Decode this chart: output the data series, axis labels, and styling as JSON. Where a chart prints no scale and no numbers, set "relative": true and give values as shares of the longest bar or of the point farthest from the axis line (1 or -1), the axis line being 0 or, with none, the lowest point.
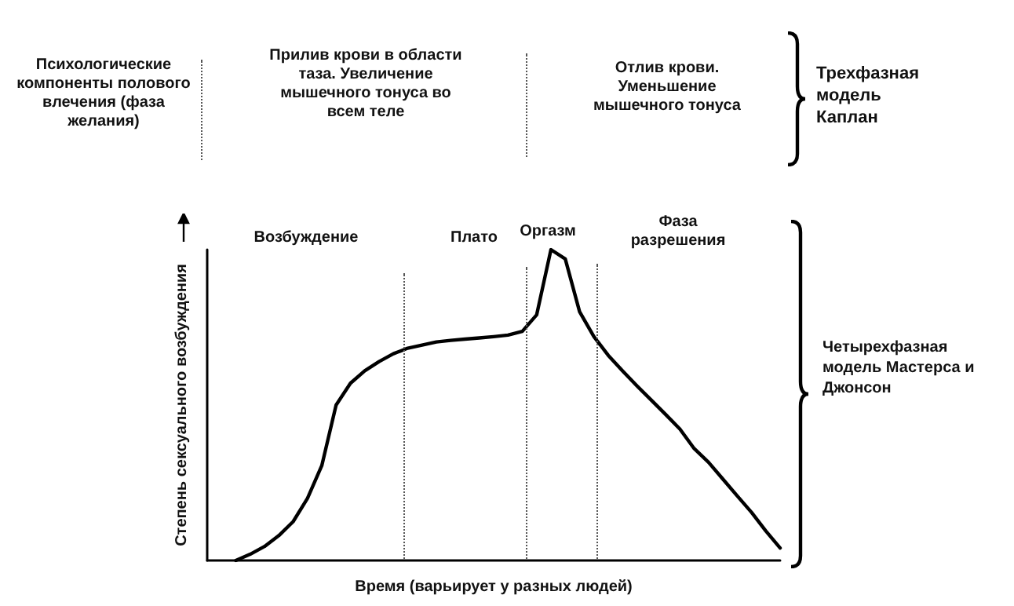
{
  "chart_data": {
    "type": "line",
    "relative": true,
    "xlabel": "Время (варьирует у разных людей)",
    "ylabel": "Степень сексуального возбуждения",
    "categories": [
      null,
      null,
      null,
      null,
      null,
      null,
      null,
      null,
      null,
      null,
      null,
      null,
      null,
      null,
      null,
      null,
      null,
      null,
      null,
      null,
      null,
      null,
      null,
      null,
      null,
      null,
      null,
      null,
      null,
      null,
      null,
      null,
      null,
      null,
      null,
      null,
      null,
      null,
      null,
      null,
      null
    ],
    "series": [
      {
        "color": "#000000",
        "values": [
          null,
          null,
          0,
          0.02,
          0.045,
          0.08,
          0.125,
          0.2,
          0.305,
          0.5,
          0.57,
          0.61,
          0.64,
          0.665,
          0.683,
          0.693,
          0.703,
          0.708,
          0.712,
          0.716,
          0.72,
          0.725,
          0.737,
          0.79,
          1,
          0.97,
          0.8,
          0.72,
          0.66,
          0.61,
          0.562,
          0.516,
          0.47,
          0.423,
          0.36,
          0.316,
          0.262,
          0.208,
          0.155,
          0.095,
          0.04
        ]
      }
    ],
    "annotations": [
      "Психологические компоненты полового влечения (фаза желания)",
      "Прилив крови в области таза. Увеличение мышечного тонуса во всем теле",
      "Отлив крови. Уменьшение мышечного тонуса",
      "Трехфазная модель Каплан",
      "Четырехфазная модель Мастерса и Джонсон",
      "Возбуждение",
      "Плато",
      "Оргазм",
      "Фаза разрешения"
    ],
    "tick_labels": false,
    "grid": false,
    "line_style": "solid"
  }
}
